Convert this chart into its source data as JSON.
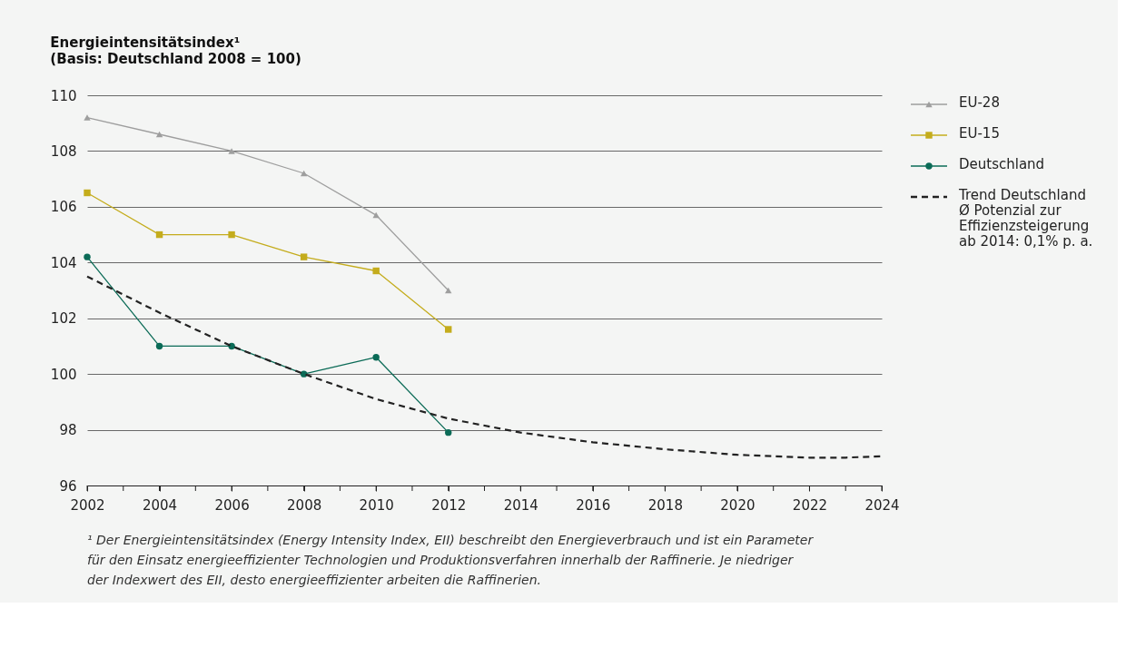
{
  "chart_data": {
    "type": "line",
    "title": "Energieintensitätsindex¹",
    "subtitle": "(Basis: Deutschland 2008 = 100)",
    "series": [
      {
        "name": "EU-28",
        "color": "#9e9e9e",
        "marker": "triangle",
        "x": [
          2002,
          2004,
          2006,
          2008,
          2010,
          2012
        ],
        "values": [
          109.2,
          108.6,
          108.0,
          107.2,
          105.7,
          103.0
        ]
      },
      {
        "name": "EU-15",
        "color": "#c4ac1c",
        "marker": "square",
        "x": [
          2002,
          2004,
          2006,
          2008,
          2010,
          2012
        ],
        "values": [
          106.5,
          105.0,
          105.0,
          104.2,
          103.7,
          101.6
        ]
      },
      {
        "name": "Deutschland",
        "color": "#0b6b57",
        "marker": "circle",
        "x": [
          2002,
          2004,
          2006,
          2008,
          2010,
          2012
        ],
        "values": [
          104.2,
          101.0,
          101.0,
          100.0,
          100.6,
          97.9
        ]
      },
      {
        "name": "Trend Deutschland\nØ Potenzial zur\nEffizienzsteigerung\nab 2014: 0,1% p. a.",
        "color": "#222222",
        "marker": "none",
        "line_style": "dashed",
        "x": [
          2002,
          2004,
          2006,
          2008,
          2010,
          2012,
          2014,
          2016,
          2018,
          2020,
          2022,
          2023,
          2024
        ],
        "values": [
          103.5,
          102.2,
          101.0,
          100.0,
          99.1,
          98.4,
          97.9,
          97.55,
          97.3,
          97.1,
          97.0,
          97.0,
          97.05
        ]
      }
    ],
    "xlim": [
      2002,
      2024
    ],
    "xticks": [
      2002,
      {
        "value": 2003,
        "label": null
      },
      2004,
      {
        "value": 2005,
        "label": null
      },
      2006,
      {
        "value": 2007,
        "label": null
      },
      2008,
      {
        "value": 2009,
        "label": null
      },
      2010,
      {
        "value": 2011,
        "label": null
      },
      2012,
      {
        "value": 2013,
        "label": null
      },
      2014,
      {
        "value": 2015,
        "label": null
      },
      2016,
      {
        "value": 2017,
        "label": null
      },
      2018,
      {
        "value": 2019,
        "label": null
      },
      2020,
      {
        "value": 2021,
        "label": null
      },
      2022,
      {
        "value": 2023,
        "label": null
      },
      2024
    ],
    "ylim": [
      96,
      110
    ],
    "yticks": [
      96,
      98,
      100,
      102,
      104,
      106,
      108,
      110
    ],
    "grid": "y",
    "legend": "right",
    "annotations": [
      "¹  Der Energieintensitätsindex (Energy Intensity Index, EII) beschreibt den Energieverbrauch und ist ein Parameter\nfür den Einsatz energieeffizienter Technologien und Produktionsverfahren innerhalb der Raffinerie. Je niedriger\nder Indexwert des EII, desto energieeffizienter arbeiten die Raffinerien."
    ]
  }
}
